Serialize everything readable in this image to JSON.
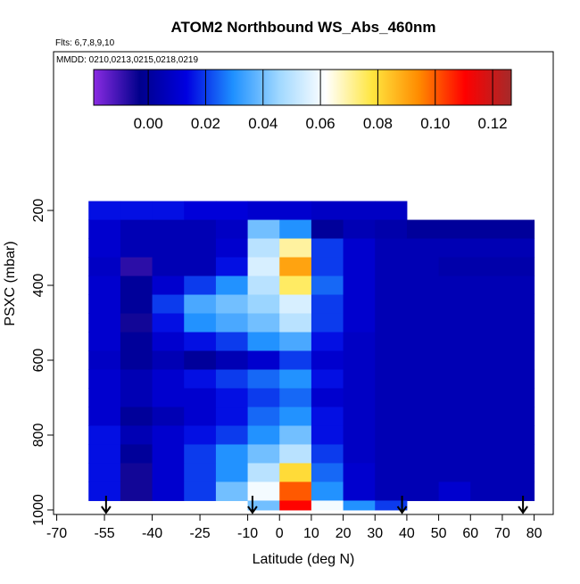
{
  "chart_data": {
    "type": "heatmap",
    "title": "ATOM2 Northbound WS_Abs_460nm",
    "subtitle": "Flts: 6,7,8,9,10",
    "annotation": "MMDD: 0210,0213,0215,0218,0219",
    "xlabel": "Latitude (deg N)",
    "ylabel": "PSXC (mbar)",
    "xlim": [
      -71,
      86
    ],
    "xticks": [
      -70,
      -55,
      -40,
      -25,
      -10,
      0,
      10,
      20,
      30,
      40,
      50,
      60,
      70,
      80
    ],
    "ylim": [
      -224,
      1012
    ],
    "y_reversed": true,
    "yticks": [
      200,
      400,
      600,
      800,
      1000
    ],
    "x_bins": [
      -60,
      -50,
      -40,
      -30,
      -20,
      -10,
      0,
      10,
      20,
      30,
      40,
      50,
      60,
      70,
      80
    ],
    "y_bins": [
      175,
      225,
      275,
      325,
      375,
      425,
      475,
      525,
      575,
      625,
      675,
      725,
      775,
      825,
      875,
      925,
      975,
      1000
    ],
    "z": [
      [
        0.015,
        0.015,
        0.015,
        0.012,
        0.012,
        0.01,
        0.01,
        0.008,
        0.008,
        0.008,
        null,
        null,
        null,
        null
      ],
      [
        0.01,
        0.005,
        0.005,
        0.005,
        0.008,
        0.04,
        0.03,
        0.0,
        0.005,
        0.003,
        0.0,
        0.0,
        0.0,
        0.0
      ],
      [
        0.01,
        0.005,
        0.005,
        0.005,
        0.01,
        0.05,
        0.07,
        0.02,
        0.01,
        0.005,
        0.005,
        0.005,
        0.005,
        0.005
      ],
      [
        0.008,
        -0.008,
        0.005,
        0.005,
        0.015,
        0.055,
        0.09,
        0.02,
        0.01,
        0.005,
        0.005,
        0.003,
        0.003,
        0.003
      ],
      [
        0.01,
        0.0,
        0.01,
        0.02,
        0.03,
        0.05,
        0.075,
        0.025,
        0.01,
        0.005,
        0.005,
        0.005,
        0.005,
        0.005
      ],
      [
        0.01,
        0.0,
        0.02,
        0.035,
        0.04,
        0.045,
        0.055,
        0.02,
        0.01,
        0.005,
        0.005,
        0.005,
        0.005,
        0.005
      ],
      [
        0.01,
        -0.005,
        0.015,
        0.03,
        0.035,
        0.04,
        0.05,
        0.02,
        0.01,
        0.005,
        0.005,
        0.005,
        0.005,
        0.005
      ],
      [
        0.01,
        0.0,
        0.01,
        0.015,
        0.02,
        0.03,
        0.035,
        0.015,
        0.008,
        0.005,
        0.005,
        0.005,
        0.005,
        0.005
      ],
      [
        0.008,
        0.0,
        0.005,
        0.0,
        0.005,
        0.01,
        0.02,
        0.01,
        0.008,
        0.005,
        0.005,
        0.005,
        0.005,
        0.005
      ],
      [
        0.01,
        0.005,
        0.01,
        0.015,
        0.02,
        0.025,
        0.03,
        0.015,
        0.008,
        0.005,
        0.005,
        0.005,
        0.005,
        0.005
      ],
      [
        0.01,
        0.005,
        0.01,
        0.01,
        0.015,
        0.02,
        0.025,
        0.01,
        0.008,
        0.005,
        0.005,
        0.005,
        0.005,
        0.005
      ],
      [
        0.01,
        0.0,
        0.005,
        0.01,
        0.015,
        0.025,
        0.03,
        0.015,
        0.008,
        0.005,
        0.005,
        0.005,
        0.005,
        0.005
      ],
      [
        0.015,
        0.005,
        0.01,
        0.015,
        0.02,
        0.03,
        0.04,
        0.015,
        0.008,
        0.005,
        0.005,
        0.005,
        0.005,
        0.005
      ],
      [
        0.015,
        0.0,
        0.01,
        0.02,
        0.03,
        0.04,
        0.05,
        0.02,
        0.008,
        0.005,
        0.005,
        0.005,
        0.005,
        0.005
      ],
      [
        0.015,
        -0.005,
        0.01,
        0.02,
        0.03,
        0.05,
        0.08,
        0.025,
        0.01,
        0.005,
        0.005,
        0.005,
        0.005,
        0.005
      ],
      [
        0.015,
        -0.005,
        0.01,
        0.02,
        0.04,
        0.06,
        0.1,
        0.03,
        0.01,
        0.005,
        0.005,
        0.01,
        0.005,
        0.005
      ],
      [
        null,
        null,
        null,
        null,
        null,
        0.04,
        0.11,
        0.06,
        0.03,
        0.02,
        null,
        null,
        null,
        null
      ]
    ],
    "zlim": [
      -0.019,
      0.1265
    ],
    "zticks": [
      {
        "value": 0,
        "label": "0.00"
      },
      {
        "value": 0.02,
        "label": "0.02"
      },
      {
        "value": 0.04,
        "label": "0.04"
      },
      {
        "value": 0.06,
        "label": "0.06"
      },
      {
        "value": 0.08,
        "label": "0.08"
      },
      {
        "value": 0.1,
        "label": "0.10"
      },
      {
        "value": 0.12,
        "label": "0.12"
      }
    ],
    "colormap": [
      "#8a2be2",
      "#00008b",
      "#0000e0",
      "#1e90ff",
      "#a0d8ff",
      "#ffffff",
      "#ffe640",
      "#ff8c00",
      "#ff0000",
      "#a52a2a"
    ],
    "flight_markers": [
      -54.5,
      -8.5,
      38.5,
      76.5
    ]
  }
}
